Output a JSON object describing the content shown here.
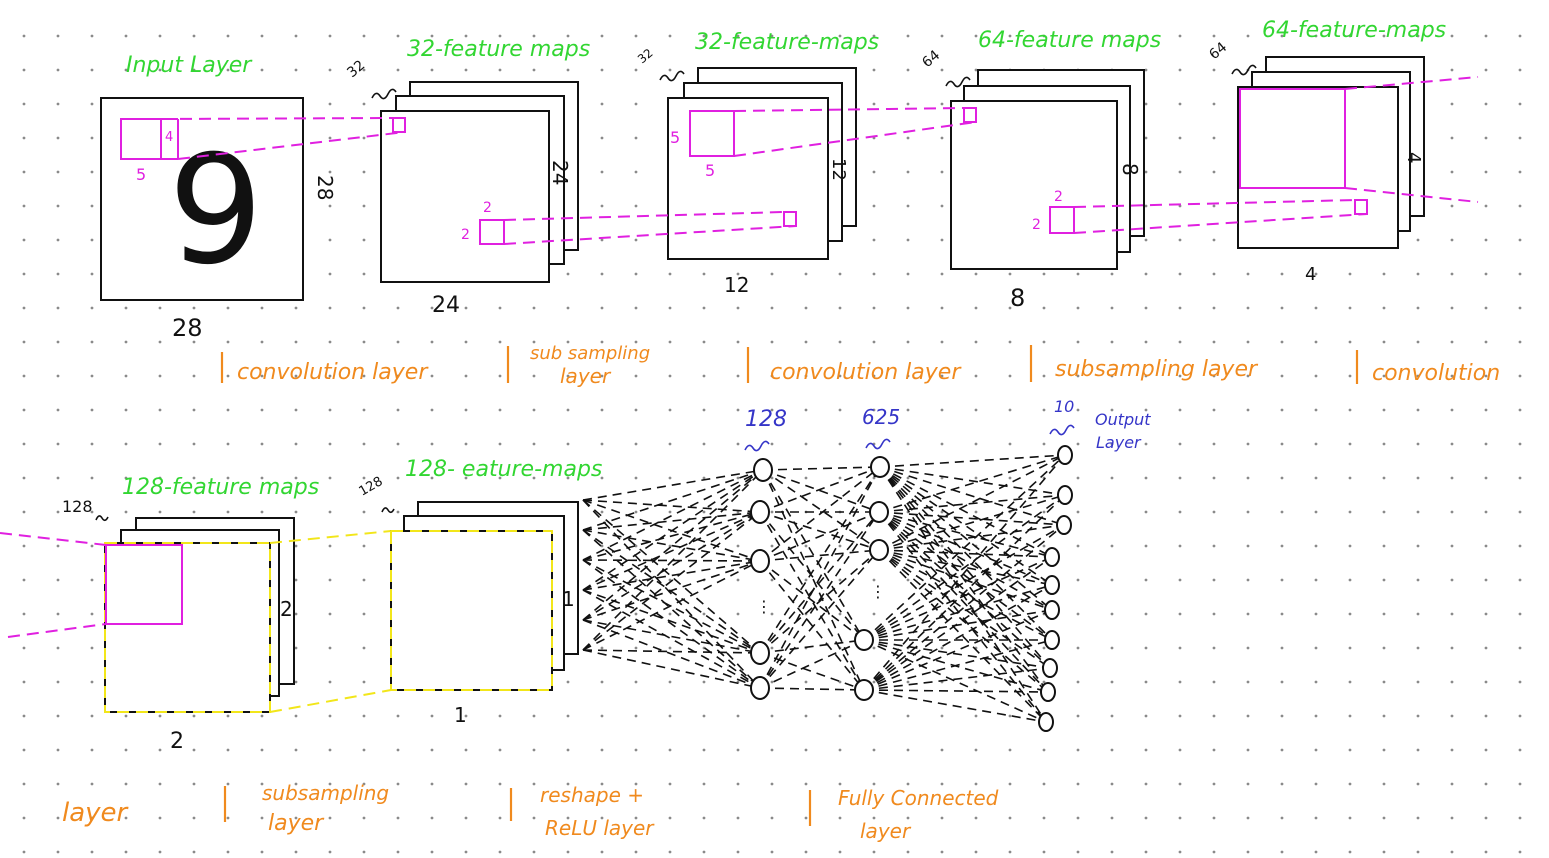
{
  "colors": {
    "title_green": "#32d632",
    "layer_orange": "#f08a1e",
    "count_blue": "#3535c8",
    "kernel_magenta": "#e020e0",
    "pool_yellow": "#f2e61a",
    "ink_black": "#111111"
  },
  "top_row": {
    "input": {
      "title": "Input Layer",
      "digit": "9",
      "width_label": "28",
      "height_label": "28",
      "kernel_w": "5",
      "kernel_h": "4"
    },
    "conv1": {
      "title": "32-feature maps",
      "count": "32",
      "width_label": "24",
      "height_label": "24",
      "kernel_w": "2",
      "kernel_h": "2"
    },
    "pool1": {
      "title": "32-feature-maps",
      "count": "32",
      "width_label": "12",
      "height_label": "12",
      "kernel_w": "5",
      "kernel_h": "5"
    },
    "conv2": {
      "title": "64-feature maps",
      "count": "64",
      "width_label": "8",
      "height_label": "8",
      "kernel_w": "2",
      "kernel_h": "2"
    },
    "pool2": {
      "title": "64-feature-maps",
      "count": "64",
      "width_label": "4",
      "height_label": "4"
    }
  },
  "bottom_row": {
    "conv3": {
      "title": "128-feature maps",
      "count": "128",
      "width_label": "2",
      "height_label": "2"
    },
    "pool3": {
      "title": "128- eature-maps",
      "count": "128",
      "width_label": "1",
      "height_label": "1"
    },
    "dense1": {
      "count": "128"
    },
    "dense2": {
      "count": "625"
    },
    "output": {
      "count": "10",
      "label_line1": "Output",
      "label_line2": "Layer"
    }
  },
  "layer_labels_top": [
    {
      "line1": "convolution layer",
      "line2": ""
    },
    {
      "line1": "sub sampling",
      "line2": "layer"
    },
    {
      "line1": "convolution layer",
      "line2": ""
    },
    {
      "line1": "subsampling layer",
      "line2": ""
    },
    {
      "line1": "convolution",
      "line2": ""
    }
  ],
  "layer_labels_bottom": [
    {
      "line1": "layer",
      "line2": ""
    },
    {
      "line1": "subsampling",
      "line2": "layer"
    },
    {
      "line1": "reshape +",
      "line2": "ReLU layer"
    },
    {
      "line1": "Fully Connected",
      "line2": "layer"
    }
  ]
}
